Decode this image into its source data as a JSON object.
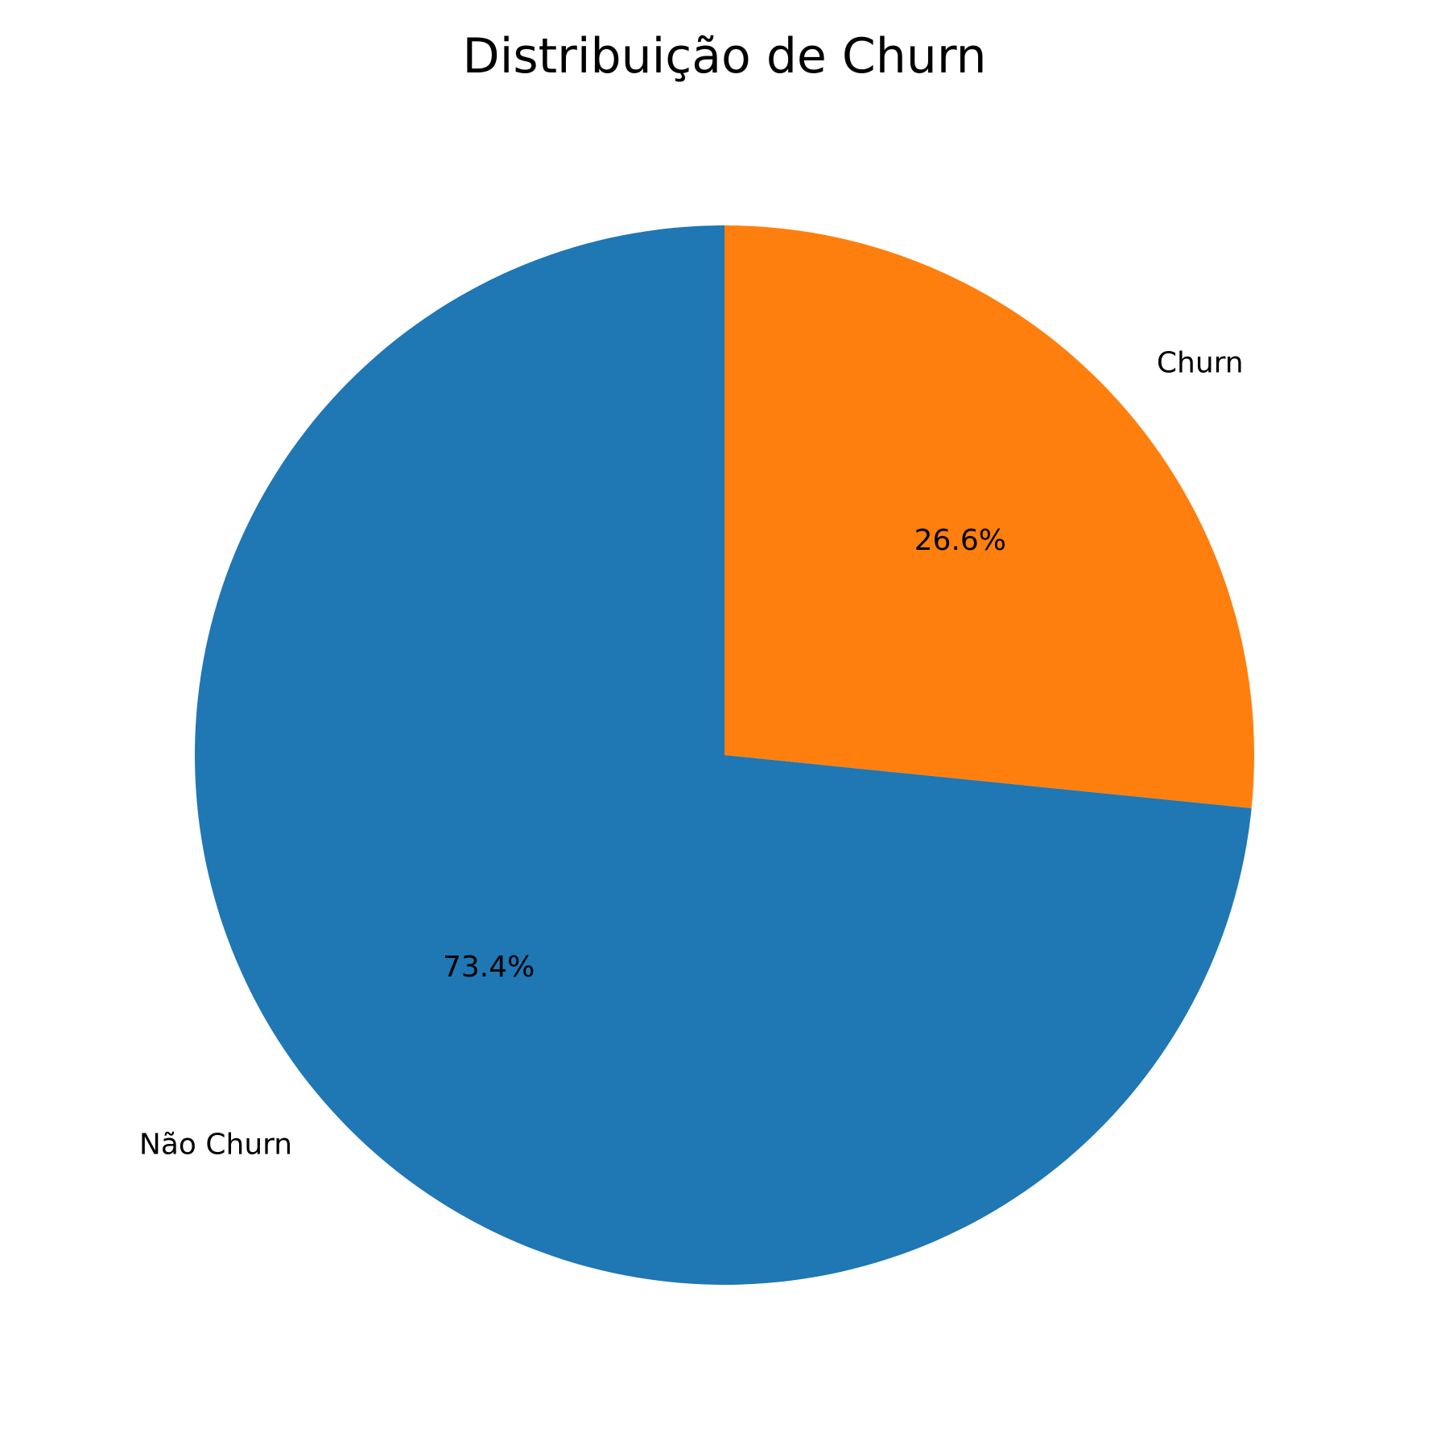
{
  "chart_data": {
    "type": "pie",
    "title": "Distribuição de Churn",
    "start_angle_deg": 90,
    "direction": "clockwise",
    "slices": [
      {
        "label": "Churn",
        "value": 26.6,
        "pct_label": "26.6%",
        "color": "#ff7f0e"
      },
      {
        "label": "Não Churn",
        "value": 73.4,
        "pct_label": "73.4%",
        "color": "#1f77b4"
      }
    ]
  }
}
